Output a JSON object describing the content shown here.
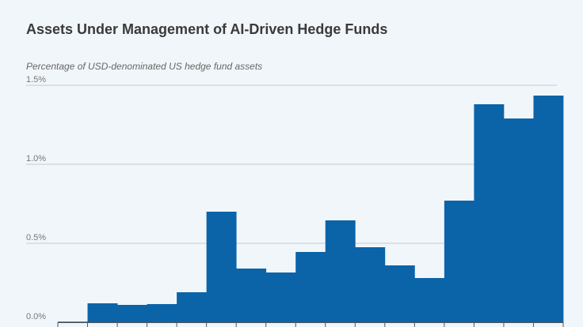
{
  "chart": {
    "title": "Assets Under Management of AI-Driven Hedge Funds",
    "subtitle": "Percentage of USD-denominated US hedge fund assets"
  },
  "colors": {
    "bar": "#0b64a8",
    "grid": "#c4c9ce",
    "background": "#f1f6fa",
    "title": "#3a3a3a",
    "label": "#777777"
  },
  "chart_data": {
    "type": "bar",
    "title": "Assets Under Management of AI-Driven Hedge Funds",
    "ylabel": "Percentage of USD-denominated US hedge fund assets",
    "xlabel": "",
    "ylim": [
      0,
      1.5
    ],
    "yticks": [
      {
        "value": 0.0,
        "label": "0.0%"
      },
      {
        "value": 0.5,
        "label": "0.5%"
      },
      {
        "value": 1.0,
        "label": "1.0%"
      },
      {
        "value": 1.5,
        "label": "1.5%"
      }
    ],
    "grid": true,
    "values": [
      0.0,
      0.12,
      0.11,
      0.115,
      0.19,
      0.7,
      0.34,
      0.315,
      0.445,
      0.645,
      0.475,
      0.36,
      0.28,
      0.77,
      1.38,
      1.29,
      1.435
    ]
  }
}
